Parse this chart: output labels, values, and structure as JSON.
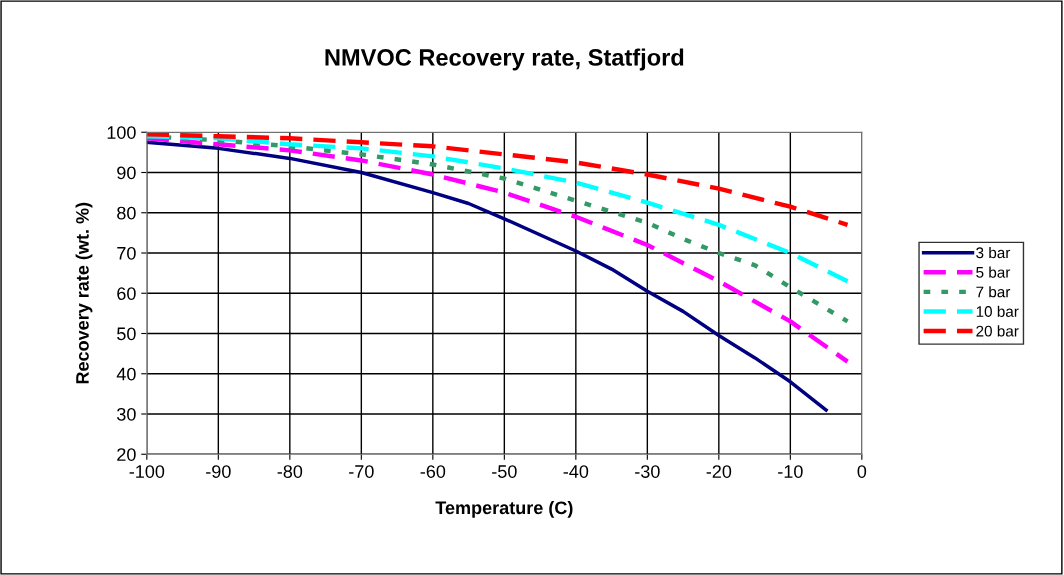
{
  "chart_data": {
    "type": "line",
    "title": "NMVOC Recovery rate, Statfjord",
    "xlabel": "Temperature (C)",
    "ylabel": "Recovery rate (wt. %)",
    "xlim": [
      -100,
      0
    ],
    "xticks": [
      -100,
      -90,
      -80,
      -70,
      -60,
      -50,
      -40,
      -30,
      -20,
      -10,
      0
    ],
    "ylim": [
      20,
      100
    ],
    "yticks": [
      20,
      30,
      40,
      50,
      60,
      70,
      80,
      90,
      100
    ],
    "grid": true,
    "legend": "right",
    "marker": "none",
    "series": [
      {
        "name": "3 bar",
        "color": "#000080",
        "line_style": "solid",
        "x": [
          -100,
          -90,
          -80,
          -70,
          -60,
          -55,
          -50,
          -40,
          -35,
          -30,
          -25,
          -20,
          -15,
          -10,
          -5
        ],
        "values": [
          97.5,
          96,
          93.5,
          90,
          85,
          82.3,
          78.5,
          70.5,
          66,
          60.5,
          55.5,
          49.5,
          44,
          38,
          31
        ]
      },
      {
        "name": "5 bar",
        "color": "#ff00ff",
        "line_style": "dashed",
        "x": [
          -100,
          -90,
          -80,
          -70,
          -60,
          -50,
          -40,
          -30,
          -20,
          -10,
          -2
        ],
        "values": [
          98.5,
          97,
          95.5,
          93,
          89.5,
          85,
          79,
          72,
          63,
          53,
          43
        ]
      },
      {
        "name": "7 bar",
        "color": "#339966",
        "line_style": "dotted",
        "x": [
          -100,
          -90,
          -80,
          -70,
          -60,
          -50,
          -40,
          -30,
          -25,
          -20,
          -15,
          -10,
          -2
        ],
        "values": [
          99,
          98,
          96.5,
          94.5,
          92,
          88.5,
          83,
          77.5,
          73.5,
          70,
          67,
          61.5,
          53
        ]
      },
      {
        "name": "10 bar",
        "color": "#00ffff",
        "line_style": "dashed",
        "x": [
          -100,
          -90,
          -80,
          -70,
          -60,
          -50,
          -40,
          -30,
          -20,
          -10,
          -2
        ],
        "values": [
          99,
          98.5,
          97,
          96,
          94,
          91,
          87.5,
          82.5,
          77,
          70,
          63
        ]
      },
      {
        "name": "20 bar",
        "color": "#ff0000",
        "line_style": "dashed",
        "x": [
          -100,
          -90,
          -80,
          -70,
          -60,
          -50,
          -40,
          -30,
          -20,
          -10,
          -2
        ],
        "values": [
          99.5,
          99,
          98.5,
          97.5,
          96.5,
          94.5,
          92.5,
          89.5,
          86,
          81.5,
          77
        ]
      }
    ]
  }
}
